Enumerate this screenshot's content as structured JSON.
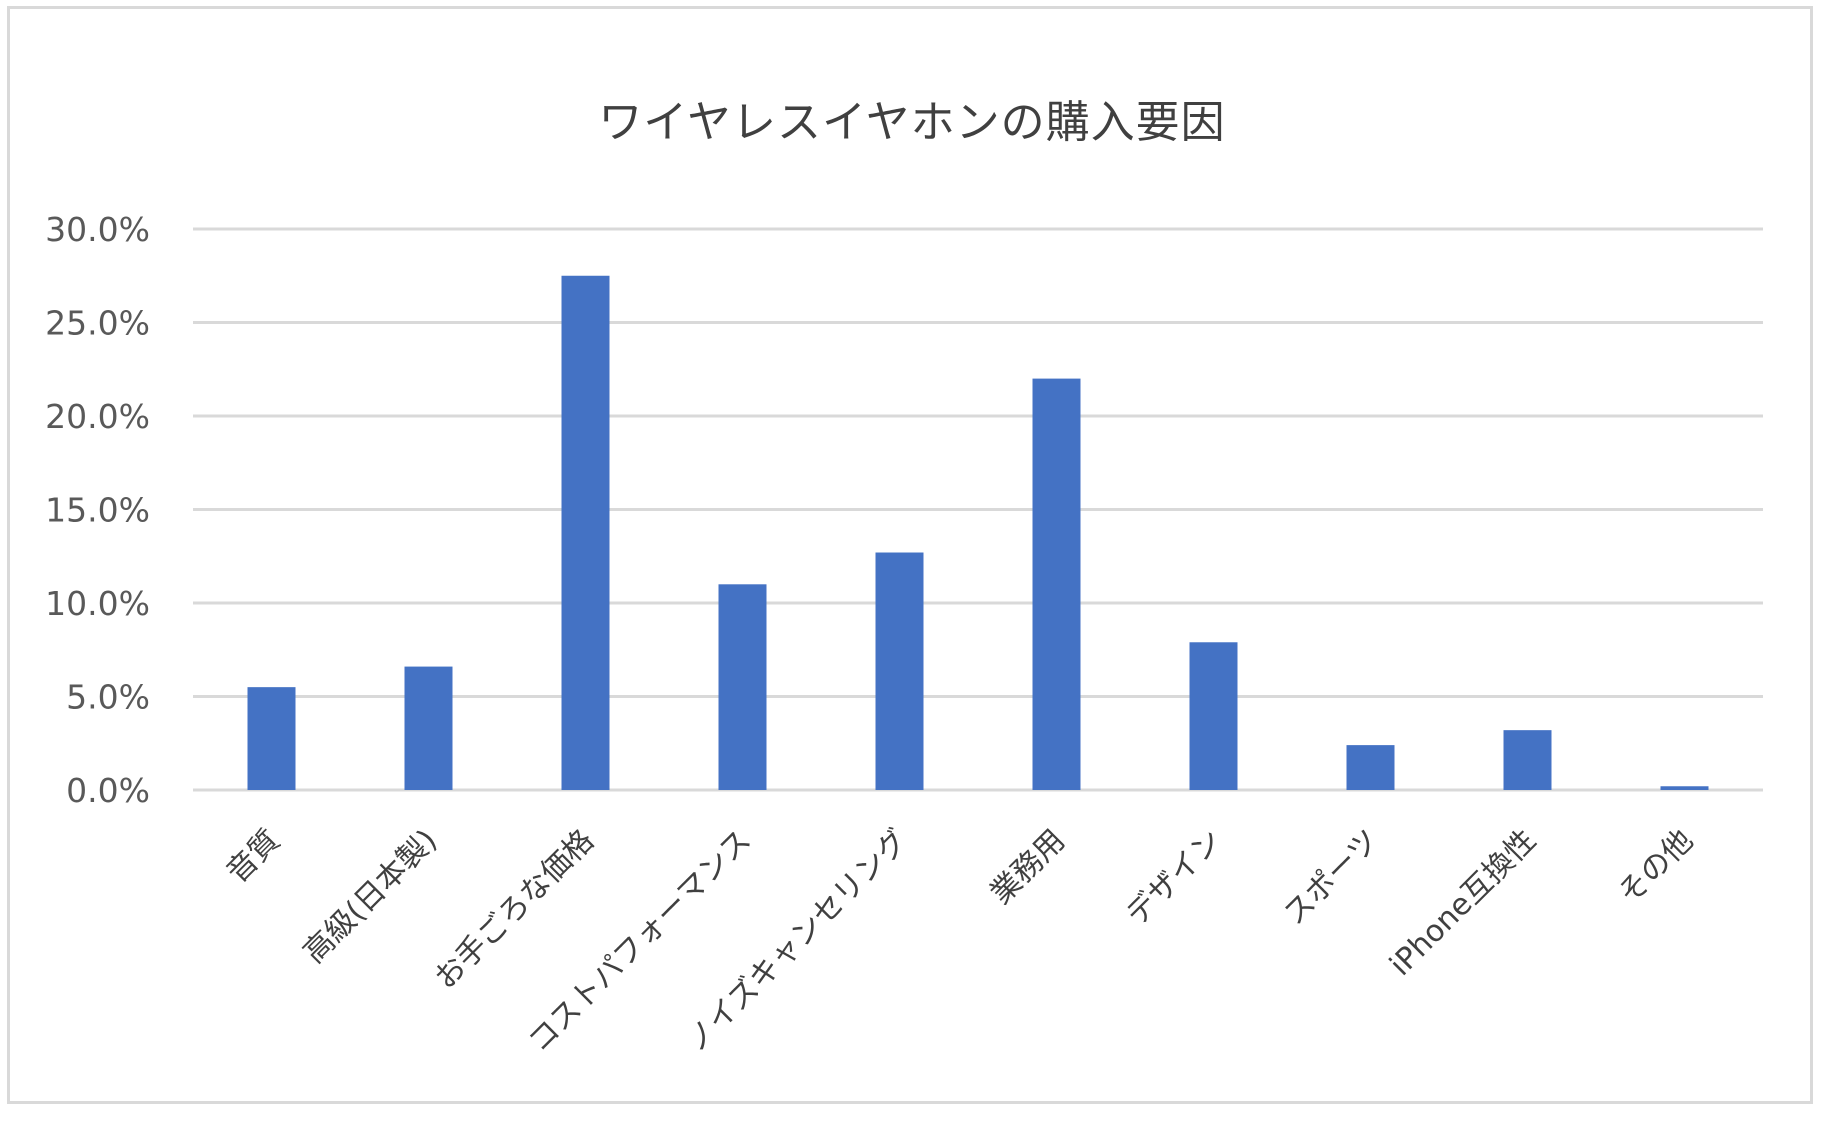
{
  "chart_data": {
    "type": "bar",
    "title": "ワイヤレスイヤホンの購入要因",
    "xlabel": "",
    "ylabel": "",
    "ylim": [
      0,
      30
    ],
    "yticks": [
      "0.0%",
      "5.0%",
      "10.0%",
      "15.0%",
      "20.0%",
      "25.0%",
      "30.0%"
    ],
    "categories": [
      "音質",
      "高級(日本製)",
      "お手ごろな価格",
      "コストパフォーマンス",
      "ノイズキャンセリング",
      "業務用",
      "デザイン",
      "スポーツ",
      "iPhone互換性",
      "その他"
    ],
    "values": [
      5.5,
      6.6,
      27.5,
      11.0,
      12.7,
      22.0,
      7.9,
      2.4,
      3.2,
      0.2
    ],
    "grid": true,
    "legend": "none",
    "bar_color": "#4472c4",
    "grid_color": "#d9d9d9"
  }
}
